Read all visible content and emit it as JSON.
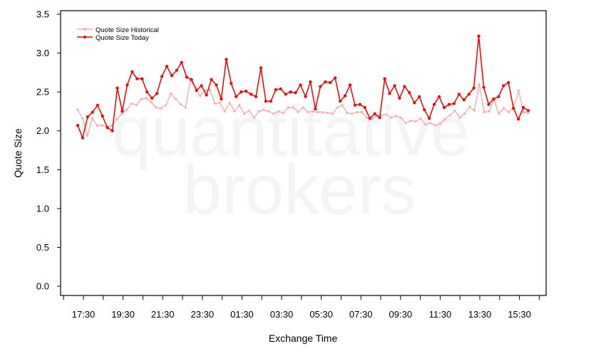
{
  "watermark": {
    "line1": "quantitative",
    "line2": "brokers"
  },
  "chart_data": {
    "type": "line",
    "xlabel": "Exchange Time",
    "ylabel": "Quote Size",
    "ylim": [
      0,
      3.5
    ],
    "yticks": [
      0.0,
      0.5,
      1.0,
      1.5,
      2.0,
      2.5,
      3.0,
      3.5
    ],
    "ytick_labels": [
      "0.0",
      "0.5",
      "1.0",
      "1.5",
      "2.0",
      "2.5",
      "3.0",
      "3.5"
    ],
    "x_tick_labels": [
      "17:30",
      "19:30",
      "21:30",
      "23:30",
      "01:30",
      "03:30",
      "05:30",
      "07:30",
      "09:30",
      "11:30",
      "13:30",
      "15:30"
    ],
    "legend_position": "top-left",
    "grid": false,
    "series": [
      {
        "name": "Quote Size Historical",
        "color": "#ffaaaa",
        "values": [
          2.27,
          2.16,
          1.94,
          2.16,
          2.07,
          2.07,
          2.05,
          2.07,
          2.15,
          2.22,
          2.27,
          2.35,
          2.33,
          2.41,
          2.42,
          2.37,
          2.3,
          2.29,
          2.33,
          2.48,
          2.41,
          2.34,
          2.3,
          2.65,
          2.56,
          2.45,
          2.52,
          2.53,
          2.35,
          2.36,
          2.25,
          2.36,
          2.25,
          2.33,
          2.22,
          2.26,
          2.17,
          2.25,
          2.27,
          2.25,
          2.22,
          2.25,
          2.23,
          2.3,
          2.3,
          2.24,
          2.3,
          2.24,
          2.25,
          2.24,
          2.24,
          2.23,
          2.22,
          2.3,
          2.33,
          2.23,
          2.22,
          2.24,
          2.24,
          2.17,
          2.15,
          2.19,
          2.2,
          2.21,
          2.17,
          2.19,
          2.17,
          2.1,
          2.13,
          2.12,
          2.16,
          2.08,
          2.1,
          2.07,
          2.09,
          2.15,
          2.2,
          2.26,
          2.17,
          2.22,
          2.31,
          2.26,
          2.6,
          2.24,
          2.25,
          2.4,
          2.22,
          2.29,
          2.24,
          2.3,
          2.52,
          2.24,
          2.23
        ]
      },
      {
        "name": "Quote Size Today",
        "color": "#ee0000",
        "values": [
          2.07,
          1.91,
          2.18,
          2.24,
          2.33,
          2.19,
          2.04,
          2.0,
          2.55,
          2.25,
          2.59,
          2.76,
          2.67,
          2.67,
          2.5,
          2.42,
          2.48,
          2.7,
          2.83,
          2.71,
          2.78,
          2.88,
          2.69,
          2.66,
          2.52,
          2.58,
          2.46,
          2.66,
          2.59,
          2.41,
          2.92,
          2.61,
          2.44,
          2.5,
          2.51,
          2.47,
          2.44,
          2.81,
          2.38,
          2.38,
          2.53,
          2.54,
          2.47,
          2.5,
          2.49,
          2.59,
          2.44,
          2.63,
          2.28,
          2.57,
          2.63,
          2.62,
          2.68,
          2.38,
          2.45,
          2.59,
          2.33,
          2.34,
          2.3,
          2.16,
          2.22,
          2.17,
          2.67,
          2.48,
          2.58,
          2.42,
          2.57,
          2.49,
          2.36,
          2.44,
          2.27,
          2.16,
          2.34,
          2.44,
          2.3,
          2.34,
          2.35,
          2.47,
          2.4,
          2.47,
          2.55,
          3.22,
          2.56,
          2.34,
          2.41,
          2.44,
          2.58,
          2.62,
          2.29,
          2.15,
          2.3,
          2.26
        ]
      }
    ]
  }
}
